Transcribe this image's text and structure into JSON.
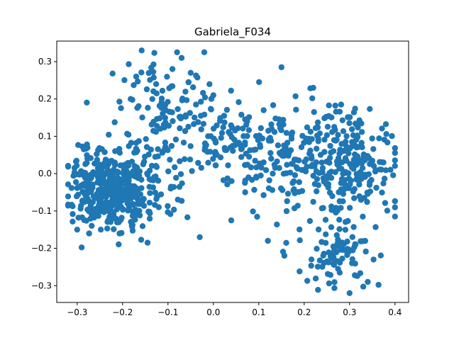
{
  "chart_data": {
    "type": "scatter",
    "title": "Gabriela_F034",
    "xlabel": "",
    "ylabel": "",
    "xlim": [
      -0.345,
      0.43
    ],
    "ylim": [
      -0.345,
      0.355
    ],
    "x_ticks": [
      -0.3,
      -0.2,
      -0.1,
      0.0,
      0.1,
      0.2,
      0.3,
      0.4
    ],
    "x_tick_labels": [
      "−0.3",
      "−0.2",
      "−0.1",
      "0.0",
      "0.1",
      "0.2",
      "0.3",
      "0.4"
    ],
    "y_ticks": [
      -0.3,
      -0.2,
      -0.1,
      0.0,
      0.1,
      0.2,
      0.3
    ],
    "y_tick_labels": [
      "−0.3",
      "−0.2",
      "−0.1",
      "0.0",
      "0.1",
      "0.2",
      "0.3"
    ],
    "grid": false,
    "marker_color": "#1f77b4",
    "clusters": [
      {
        "center": [
          -0.22,
          -0.05
        ],
        "spread": [
          0.045,
          0.05
        ],
        "count": 330
      },
      {
        "center": [
          -0.27,
          -0.03
        ],
        "spread": [
          0.03,
          0.05
        ],
        "count": 70
      },
      {
        "center": [
          -0.15,
          0.02
        ],
        "spread": [
          0.05,
          0.08
        ],
        "count": 90
      },
      {
        "center": [
          -0.12,
          0.2
        ],
        "spread": [
          0.05,
          0.05
        ],
        "count": 60
      },
      {
        "center": [
          -0.05,
          0.12
        ],
        "spread": [
          0.05,
          0.06
        ],
        "count": 40
      },
      {
        "center": [
          0.03,
          0.1
        ],
        "spread": [
          0.05,
          0.05
        ],
        "count": 45
      },
      {
        "center": [
          0.12,
          0.07
        ],
        "spread": [
          0.06,
          0.07
        ],
        "count": 110
      },
      {
        "center": [
          0.26,
          0.05
        ],
        "spread": [
          0.06,
          0.07
        ],
        "count": 160
      },
      {
        "center": [
          0.32,
          0.0
        ],
        "spread": [
          0.04,
          0.07
        ],
        "count": 100
      },
      {
        "center": [
          0.28,
          -0.22
        ],
        "spread": [
          0.04,
          0.04
        ],
        "count": 80
      },
      {
        "center": [
          0.2,
          -0.1
        ],
        "spread": [
          0.08,
          0.06
        ],
        "count": 25
      }
    ],
    "outliers": [
      [
        -0.08,
        0.325
      ],
      [
        -0.07,
        0.31
      ],
      [
        -0.02,
        0.325
      ],
      [
        0.15,
        0.285
      ],
      [
        0.0,
        0.21
      ],
      [
        -0.05,
        0.27
      ],
      [
        -0.17,
        0.26
      ],
      [
        -0.3,
        -0.15
      ],
      [
        0.12,
        -0.18
      ],
      [
        0.3,
        -0.32
      ],
      [
        0.34,
        -0.29
      ],
      [
        0.07,
        -0.05
      ],
      [
        0.04,
        -0.02
      ],
      [
        -0.03,
        -0.17
      ],
      [
        0.22,
        0.23
      ]
    ]
  }
}
